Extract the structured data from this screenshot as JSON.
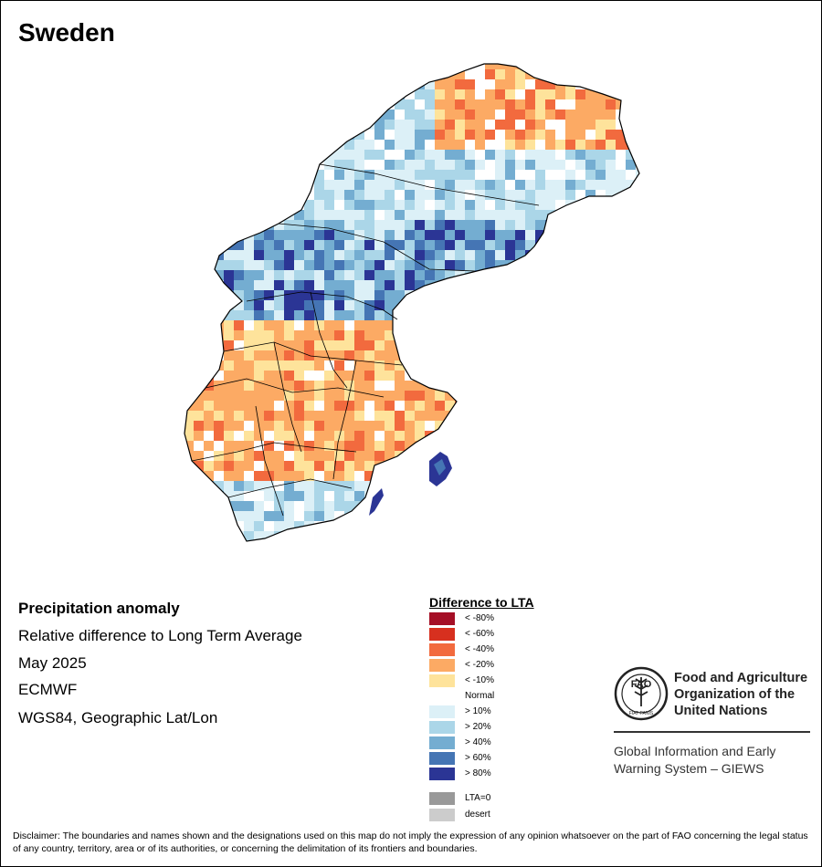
{
  "title": "Sweden",
  "info": {
    "line1": "Precipitation anomaly",
    "line2": "Relative difference to Long Term Average",
    "line3": "May 2025",
    "line4": "ECMWF",
    "line5": "WGS84, Geographic Lat/Lon"
  },
  "legend": {
    "title": "Difference to LTA",
    "items": [
      {
        "label": "< -80%",
        "color": "#a50f26"
      },
      {
        "label": "< -60%",
        "color": "#d7301f"
      },
      {
        "label": "< -40%",
        "color": "#f26a3e"
      },
      {
        "label": "< -20%",
        "color": "#fcaa64"
      },
      {
        "label": "< -10%",
        "color": "#fee39b"
      },
      {
        "label": "Normal",
        "color": "#ffffff"
      },
      {
        "label": "> 10%",
        "color": "#dcf0f7"
      },
      {
        "label": "> 20%",
        "color": "#abd6e8"
      },
      {
        "label": "> 40%",
        "color": "#74add1"
      },
      {
        "label": "> 60%",
        "color": "#4575b4"
      },
      {
        "label": "> 80%",
        "color": "#2b3595"
      }
    ],
    "extra": [
      {
        "label": "LTA=0",
        "color": "#999999"
      },
      {
        "label": "desert",
        "color": "#cccccc"
      }
    ]
  },
  "logo": {
    "emblem_text": "FAO",
    "motto": "FIAT PANIS",
    "org_line1": "Food and Agriculture",
    "org_line2": "Organization of the",
    "org_line3": "United Nations",
    "system_line1": "Global Information and Early",
    "system_line2": "Warning System – GIEWS"
  },
  "disclaimer": "Disclaimer: The boundaries and names shown and the designations used on this map do not imply the expression of any opinion whatsoever on the part of FAO concerning the legal status of any country, territory, area or of its authorities, or concerning the delimitation of its frontiers and boundaries."
}
